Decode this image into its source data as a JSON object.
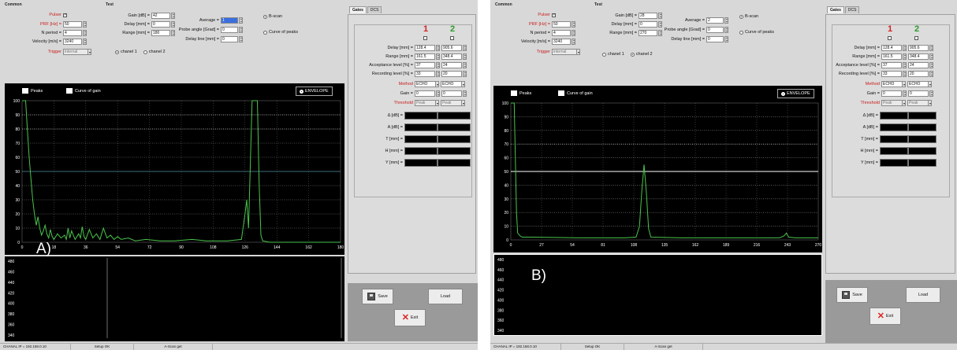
{
  "panels": [
    {
      "label": "A)",
      "groups": {
        "common": "Common",
        "test": "Test"
      },
      "common": {
        "pulser_label": "Pulser",
        "prf_label": "PRF [Hz] =",
        "prf_value": "50",
        "nperiod_label": "N period =",
        "nperiod_value": "4",
        "velocity_label": "Velocity [m/s] =",
        "velocity_value": "3240",
        "trigger_label": "Trigger",
        "trigger_value": "internal"
      },
      "test": {
        "gain_label": "Gain [dB] =",
        "gain_value": "42",
        "delay_label": "Delay [mm] =",
        "delay_value": "0",
        "range_label": "Range [mm] =",
        "range_value": "180",
        "average_label": "Average =",
        "average_value": "1",
        "probe_label": "Probe angle [Grad] =",
        "probe_value": "0",
        "delayline_label": "Delay line [mm] =",
        "delayline_value": "0",
        "chanel1": "chanel 1",
        "chanel2": "chanel 2",
        "chanel_selected": 1
      },
      "mode": {
        "bscan": "B-scan",
        "curve": "Curve of peaks"
      },
      "tabs": [
        "Gates",
        "DCS"
      ],
      "gates": {
        "num1": "1",
        "num2": "2",
        "delay_label": "Delay [mm] =",
        "delay1": "128.4",
        "delay2": "905.6",
        "range_label": "Range [mm] =",
        "range1": "161.5",
        "range2": "348.4",
        "accept_label": "Acceptance level [%] =",
        "accept1": "37",
        "accept2": "24",
        "record_label": "Recording level [%] =",
        "record1": "33",
        "record2": "20",
        "method_label": "Method",
        "method1": "ECHO",
        "method2": "ECHO",
        "gain_label": "Gain =",
        "gain1": "0",
        "gain2": "0",
        "threshold_label": "Threshold",
        "threshold1": "Peak",
        "threshold2": "Peak",
        "readouts": [
          "Δ [dB] =",
          "A [dB] =",
          "T [mm] =",
          "H [mm] =",
          "Y [mm] ="
        ]
      },
      "plot": {
        "peaks_label": "Peaks",
        "curve_label": "Curve of gain",
        "envelope_label": "ENVELOPE",
        "y_ticks": [
          "100",
          "90",
          "80",
          "70",
          "60",
          "50",
          "40",
          "30",
          "20",
          "10",
          "0"
        ],
        "x_ticks": [
          "0",
          "18",
          "36",
          "54",
          "72",
          "90",
          "108",
          "126",
          "144",
          "162",
          "180"
        ],
        "lower_ticks": [
          "480",
          "460",
          "440",
          "420",
          "400",
          "380",
          "360",
          "340"
        ]
      },
      "buttons": {
        "save": "Save",
        "load": "Load",
        "exit": "Exit"
      },
      "status": {
        "ip": "CHANAL IP = 192.168.0.10",
        "setup": "Setup OK",
        "ascan": "A-Scan get"
      }
    },
    {
      "label": "B)",
      "groups": {
        "common": "Common",
        "test": "Test"
      },
      "common": {
        "pulser_label": "Pulser",
        "prf_label": "PRF [Hz] =",
        "prf_value": "50",
        "nperiod_label": "N period =",
        "nperiod_value": "4",
        "velocity_label": "Velocity [m/s] =",
        "velocity_value": "3240",
        "trigger_label": "Trigger",
        "trigger_value": "internal"
      },
      "test": {
        "gain_label": "Gain [dB] =",
        "gain_value": "28",
        "delay_label": "Delay [mm] =",
        "delay_value": "0",
        "range_label": "Range [mm] =",
        "range_value": "270",
        "average_label": "Average =",
        "average_value": "2",
        "probe_label": "Probe angle [Grad] =",
        "probe_value": "0",
        "delayline_label": "Delay line [mm] =",
        "delayline_value": "0",
        "chanel1": "chanel 1",
        "chanel2": "chanel 2",
        "chanel_selected": 2
      },
      "mode": {
        "bscan": "B-scan",
        "curve": "Curve of peaks"
      },
      "tabs": [
        "Gates",
        "DCS"
      ],
      "gates": {
        "num1": "1",
        "num2": "2",
        "delay_label": "Delay [mm] =",
        "delay1": "128.4",
        "delay2": "905.6",
        "range_label": "Range [mm] =",
        "range1": "161.5",
        "range2": "348.4",
        "accept_label": "Acceptance level [%] =",
        "accept1": "37",
        "accept2": "24",
        "record_label": "Recording level [%] =",
        "record1": "33",
        "record2": "20",
        "method_label": "Method",
        "method1": "ECHO",
        "method2": "ECHO",
        "gain_label": "Gain =",
        "gain1": "0",
        "gain2": "0",
        "threshold_label": "Threshold",
        "threshold1": "Peak",
        "threshold2": "Peak",
        "readouts": [
          "Δ [dB] =",
          "A [dB] =",
          "T [mm] =",
          "H [mm] =",
          "Y [mm] ="
        ]
      },
      "plot": {
        "peaks_label": "Peaks",
        "curve_label": "Curve of gain",
        "envelope_label": "ENVELOPE",
        "y_ticks": [
          "100",
          "90",
          "80",
          "70",
          "60",
          "50",
          "40",
          "30",
          "20",
          "10",
          "0"
        ],
        "x_ticks": [
          "0",
          "27",
          "54",
          "81",
          "108",
          "135",
          "162",
          "189",
          "216",
          "243",
          "270"
        ],
        "lower_ticks": [
          "480",
          "460",
          "440",
          "420",
          "400",
          "380",
          "360",
          "340"
        ]
      },
      "buttons": {
        "save": "Save",
        "load": "Load",
        "exit": "Exit"
      },
      "status": {
        "ip": "CHANAL IP = 192.168.0.10",
        "setup": "Setup OK",
        "ascan": "A-Scan get"
      }
    }
  ],
  "colors": {
    "trace": "#49c54a",
    "grid": "#ffffff",
    "gate_line": "#4a8a9a",
    "white_gate": "#ffffff"
  },
  "chart_data": [
    {
      "type": "line",
      "xlim": [
        0,
        180
      ],
      "ylim": [
        0,
        100
      ],
      "series": [
        {
          "values": [
            [
              0,
              100
            ],
            [
              2,
              100
            ],
            [
              3,
              80
            ],
            [
              4,
              60
            ],
            [
              5,
              45
            ],
            [
              6,
              30
            ],
            [
              7,
              20
            ],
            [
              8,
              12
            ],
            [
              9,
              18
            ],
            [
              10,
              10
            ],
            [
              11,
              5
            ],
            [
              12,
              8
            ],
            [
              13,
              12
            ],
            [
              14,
              6
            ],
            [
              15,
              3
            ],
            [
              16,
              9
            ],
            [
              17,
              4
            ],
            [
              18,
              2
            ],
            [
              20,
              6
            ],
            [
              22,
              3
            ],
            [
              24,
              5
            ],
            [
              25,
              2
            ],
            [
              26,
              10
            ],
            [
              27,
              3
            ],
            [
              28,
              8
            ],
            [
              30,
              2
            ],
            [
              32,
              6
            ],
            [
              33,
              3
            ],
            [
              34,
              11
            ],
            [
              35,
              4
            ],
            [
              36,
              2
            ],
            [
              38,
              9
            ],
            [
              40,
              3
            ],
            [
              42,
              6
            ],
            [
              44,
              2
            ],
            [
              46,
              10
            ],
            [
              48,
              3
            ],
            [
              50,
              5
            ],
            [
              52,
              2
            ],
            [
              54,
              4
            ],
            [
              56,
              2
            ],
            [
              60,
              3
            ],
            [
              64,
              1
            ],
            [
              70,
              2
            ],
            [
              78,
              1
            ],
            [
              86,
              1
            ],
            [
              96,
              2
            ],
            [
              104,
              1
            ],
            [
              116,
              1
            ],
            [
              124,
              2
            ],
            [
              126,
              20
            ],
            [
              127,
              30
            ],
            [
              128,
              10
            ],
            [
              130,
              100
            ],
            [
              131,
              100
            ],
            [
              132,
              100
            ],
            [
              133,
              100
            ],
            [
              134,
              40
            ],
            [
              135,
              5
            ],
            [
              136,
              1
            ],
            [
              140,
              0
            ],
            [
              180,
              0
            ]
          ]
        }
      ]
    },
    {
      "type": "line",
      "xlim": [
        0,
        270
      ],
      "ylim": [
        0,
        100
      ],
      "series": [
        {
          "values": [
            [
              0,
              100
            ],
            [
              3,
              100
            ],
            [
              5,
              20
            ],
            [
              6,
              5
            ],
            [
              8,
              3
            ],
            [
              10,
              2
            ],
            [
              20,
              2
            ],
            [
              60,
              1.5
            ],
            [
              100,
              1.5
            ],
            [
              110,
              2
            ],
            [
              113,
              10
            ],
            [
              115,
              35
            ],
            [
              117,
              55
            ],
            [
              119,
              35
            ],
            [
              121,
              8
            ],
            [
              123,
              2
            ],
            [
              150,
              1.5
            ],
            [
              200,
              1.5
            ],
            [
              236,
              1.5
            ],
            [
              240,
              3
            ],
            [
              242,
              5
            ],
            [
              244,
              2
            ],
            [
              250,
              1.5
            ],
            [
              270,
              1.5
            ]
          ]
        }
      ]
    }
  ]
}
